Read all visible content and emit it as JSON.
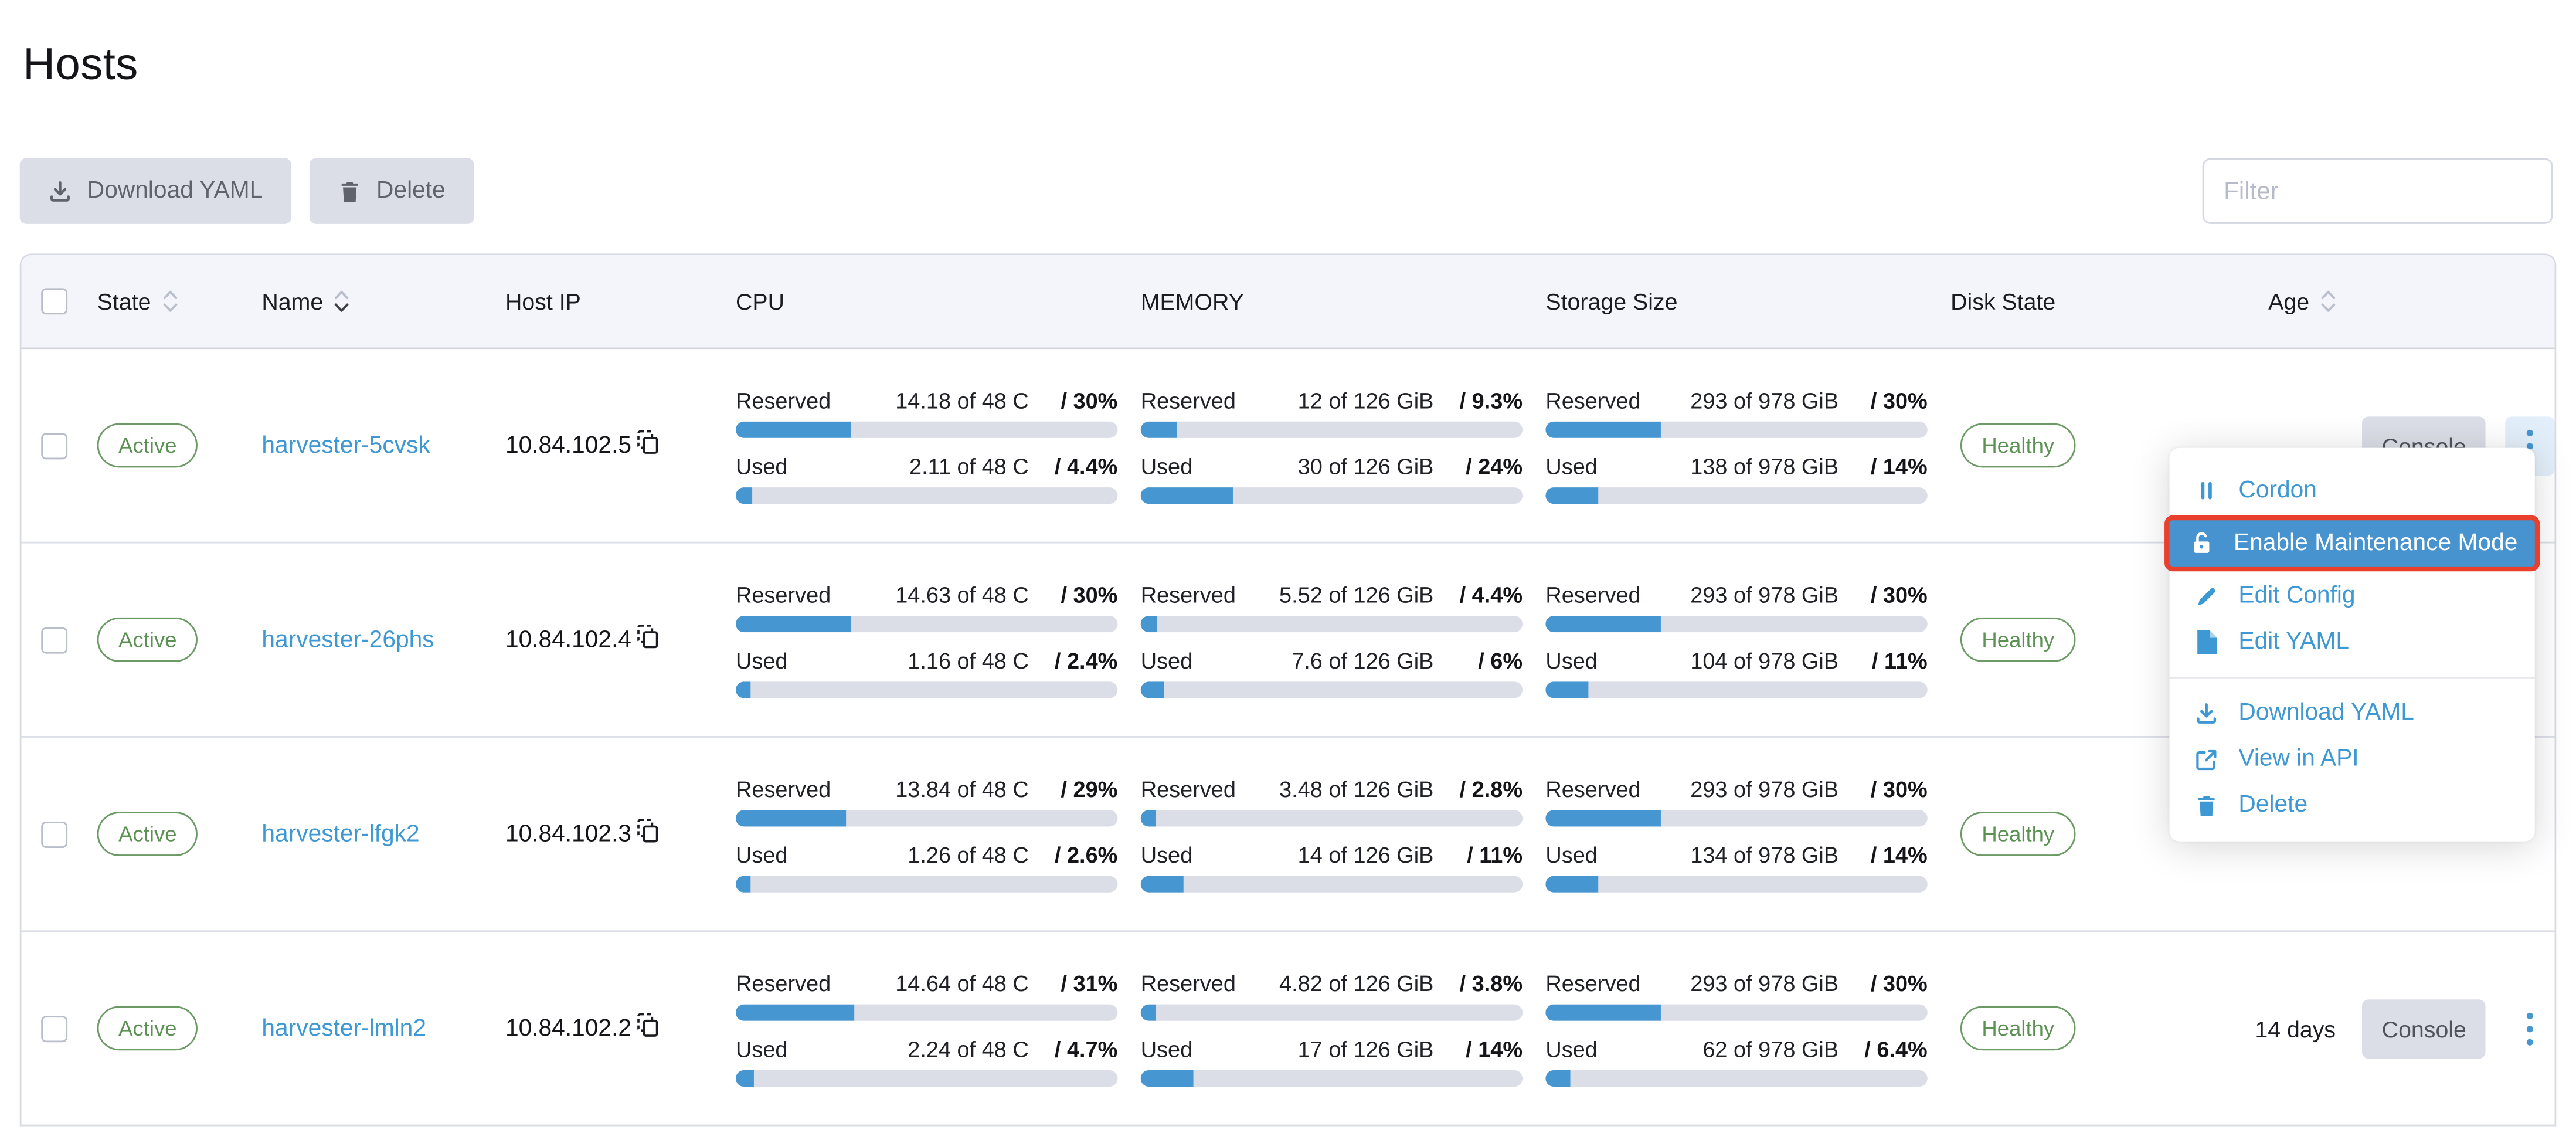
{
  "page": {
    "title": "Hosts"
  },
  "toolbar": {
    "download_yaml_label": "Download YAML",
    "delete_label": "Delete",
    "filter_placeholder": "Filter"
  },
  "table": {
    "labels": {
      "reserved": "Reserved",
      "used": "Used",
      "console": "Console"
    },
    "columns": [
      {
        "key": "select",
        "type": "checkbox"
      },
      {
        "key": "state",
        "label": "State",
        "sortable": true,
        "sort": null
      },
      {
        "key": "name",
        "label": "Name",
        "sortable": true,
        "sort": "desc"
      },
      {
        "key": "host_ip",
        "label": "Host IP",
        "sortable": false
      },
      {
        "key": "cpu",
        "label": "CPU",
        "sortable": false
      },
      {
        "key": "memory",
        "label": "MEMORY",
        "sortable": false
      },
      {
        "key": "storage",
        "label": "Storage Size",
        "sortable": false
      },
      {
        "key": "disk_state",
        "label": "Disk State",
        "sortable": false
      },
      {
        "key": "age",
        "label": "Age",
        "sortable": true,
        "sort": null
      },
      {
        "key": "actions"
      }
    ],
    "rows": [
      {
        "state": "Active",
        "name": "harvester-5cvsk",
        "host_ip": "10.84.102.5",
        "cpu": {
          "reserved": {
            "amount": "14.18 of 48 C",
            "percent_label": "/ 30%",
            "percent": 30
          },
          "used": {
            "amount": "2.11 of 48 C",
            "percent_label": "/ 4.4%",
            "percent": 4.4
          }
        },
        "memory": {
          "reserved": {
            "amount": "12 of 126 GiB",
            "percent_label": "/ 9.3%",
            "percent": 9.3
          },
          "used": {
            "amount": "30 of 126 GiB",
            "percent_label": "/ 24%",
            "percent": 24
          }
        },
        "storage": {
          "reserved": {
            "amount": "293 of 978 GiB",
            "percent_label": "/ 30%",
            "percent": 30
          },
          "used": {
            "amount": "138 of 978 GiB",
            "percent_label": "/ 14%",
            "percent": 14
          }
        },
        "disk_state": "Healthy",
        "age": "",
        "show_console": true,
        "kebab": "highlighted"
      },
      {
        "state": "Active",
        "name": "harvester-26phs",
        "host_ip": "10.84.102.4",
        "cpu": {
          "reserved": {
            "amount": "14.63 of 48 C",
            "percent_label": "/ 30%",
            "percent": 30
          },
          "used": {
            "amount": "1.16 of 48 C",
            "percent_label": "/ 2.4%",
            "percent": 2.4
          }
        },
        "memory": {
          "reserved": {
            "amount": "5.52 of 126 GiB",
            "percent_label": "/ 4.4%",
            "percent": 4.4
          },
          "used": {
            "amount": "7.6 of 126 GiB",
            "percent_label": "/ 6%",
            "percent": 6
          }
        },
        "storage": {
          "reserved": {
            "amount": "293 of 978 GiB",
            "percent_label": "/ 30%",
            "percent": 30
          },
          "used": {
            "amount": "104 of 978 GiB",
            "percent_label": "/ 11%",
            "percent": 11
          }
        },
        "disk_state": "Healthy",
        "age": "",
        "show_console": false,
        "kebab": null
      },
      {
        "state": "Active",
        "name": "harvester-lfgk2",
        "host_ip": "10.84.102.3",
        "cpu": {
          "reserved": {
            "amount": "13.84 of 48 C",
            "percent_label": "/ 29%",
            "percent": 29
          },
          "used": {
            "amount": "1.26 of 48 C",
            "percent_label": "/ 2.6%",
            "percent": 2.6
          }
        },
        "memory": {
          "reserved": {
            "amount": "3.48 of 126 GiB",
            "percent_label": "/ 2.8%",
            "percent": 2.8
          },
          "used": {
            "amount": "14 of 126 GiB",
            "percent_label": "/ 11%",
            "percent": 11
          }
        },
        "storage": {
          "reserved": {
            "amount": "293 of 978 GiB",
            "percent_label": "/ 30%",
            "percent": 30
          },
          "used": {
            "amount": "134 of 978 GiB",
            "percent_label": "/ 14%",
            "percent": 14
          }
        },
        "disk_state": "Healthy",
        "age": "",
        "show_console": false,
        "kebab": null
      },
      {
        "state": "Active",
        "name": "harvester-lmln2",
        "host_ip": "10.84.102.2",
        "cpu": {
          "reserved": {
            "amount": "14.64 of 48 C",
            "percent_label": "/ 31%",
            "percent": 31
          },
          "used": {
            "amount": "2.24 of 48 C",
            "percent_label": "/ 4.7%",
            "percent": 4.7
          }
        },
        "memory": {
          "reserved": {
            "amount": "4.82 of 126 GiB",
            "percent_label": "/ 3.8%",
            "percent": 3.8
          },
          "used": {
            "amount": "17 of 126 GiB",
            "percent_label": "/ 14%",
            "percent": 14
          }
        },
        "storage": {
          "reserved": {
            "amount": "293 of 978 GiB",
            "percent_label": "/ 30%",
            "percent": 30
          },
          "used": {
            "amount": "62 of 978 GiB",
            "percent_label": "/ 6.4%",
            "percent": 6.4
          }
        },
        "disk_state": "Healthy",
        "age": "14 days",
        "show_console": true,
        "kebab": "normal"
      }
    ]
  },
  "context_menu": {
    "items": [
      {
        "label": "Cordon",
        "icon": "pause-icon",
        "highlighted": false
      },
      {
        "label": "Enable Maintenance Mode",
        "icon": "unlock-icon",
        "highlighted": true
      },
      {
        "label": "Edit Config",
        "icon": "pencil-icon",
        "highlighted": false
      },
      {
        "label": "Edit YAML",
        "icon": "file-icon",
        "highlighted": false
      },
      {
        "divider": true
      },
      {
        "label": "Download YAML",
        "icon": "download-icon",
        "highlighted": false
      },
      {
        "label": "View in API",
        "icon": "external-link-icon",
        "highlighted": false
      },
      {
        "label": "Delete",
        "icon": "trash-icon",
        "highlighted": false
      }
    ]
  },
  "colors": {
    "accent_blue": "#3d98d3",
    "bar_fill": "#4596d1",
    "bar_track": "#dcdee7",
    "badge_green": "#5b9152",
    "menu_highlight_bg": "#4793cf",
    "menu_highlight_border": "#e8402c",
    "button_bg": "#dcdee7",
    "header_bg": "#f4f5fa",
    "row_border": "#dcdee7"
  }
}
